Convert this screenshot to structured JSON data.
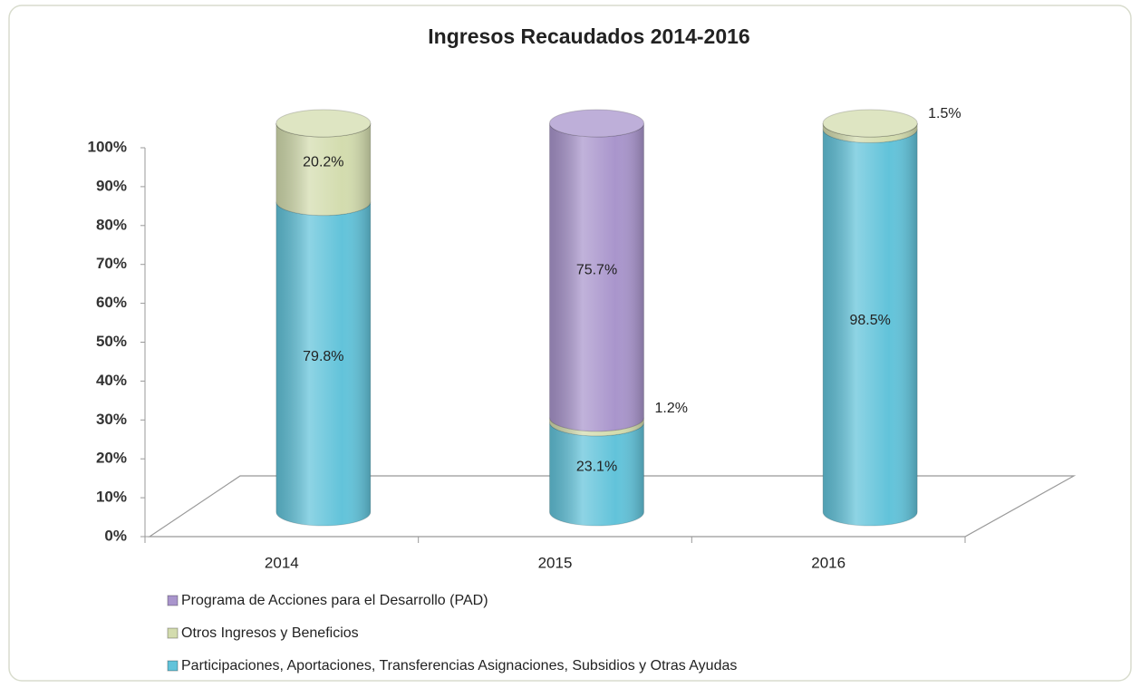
{
  "chart_data": {
    "type": "bar3d-stacked-cylinder",
    "title": "Ingresos Recaudados 2014-2016",
    "categories": [
      "2014",
      "2015",
      "2016"
    ],
    "series": [
      {
        "name": "Programa de Acciones para el Desarrollo (PAD)",
        "color": "#a995cc",
        "values": [
          0,
          75.7,
          0
        ],
        "value_labels": [
          null,
          "75.7%",
          null
        ]
      },
      {
        "name": "Otros Ingresos y Beneficios",
        "color": "#d3dcae",
        "values": [
          20.2,
          1.2,
          1.5
        ],
        "value_labels": [
          "20.2%",
          "1.2%",
          "1.5%"
        ]
      },
      {
        "name": "Participaciones, Aportaciones, Transferencias Asignaciones, Subsidios y Otras Ayudas",
        "color": "#62c3da",
        "values": [
          79.8,
          23.1,
          98.5
        ],
        "value_labels": [
          "79.8%",
          "23.1%",
          "98.5%"
        ]
      }
    ],
    "stack_order": "reverse",
    "ylim": [
      0,
      100
    ],
    "yticks": [
      {
        "value": 0,
        "label": "0%"
      },
      {
        "value": 10,
        "label": "10%"
      },
      {
        "value": 20,
        "label": "20%"
      },
      {
        "value": 30,
        "label": "30%"
      },
      {
        "value": 40,
        "label": "40%"
      },
      {
        "value": 50,
        "label": "50%"
      },
      {
        "value": 60,
        "label": "60%"
      },
      {
        "value": 70,
        "label": "70%"
      },
      {
        "value": 80,
        "label": "80%"
      },
      {
        "value": 90,
        "label": "90%"
      },
      {
        "value": 100,
        "label": "100%"
      }
    ],
    "legend": "bottom-left"
  }
}
